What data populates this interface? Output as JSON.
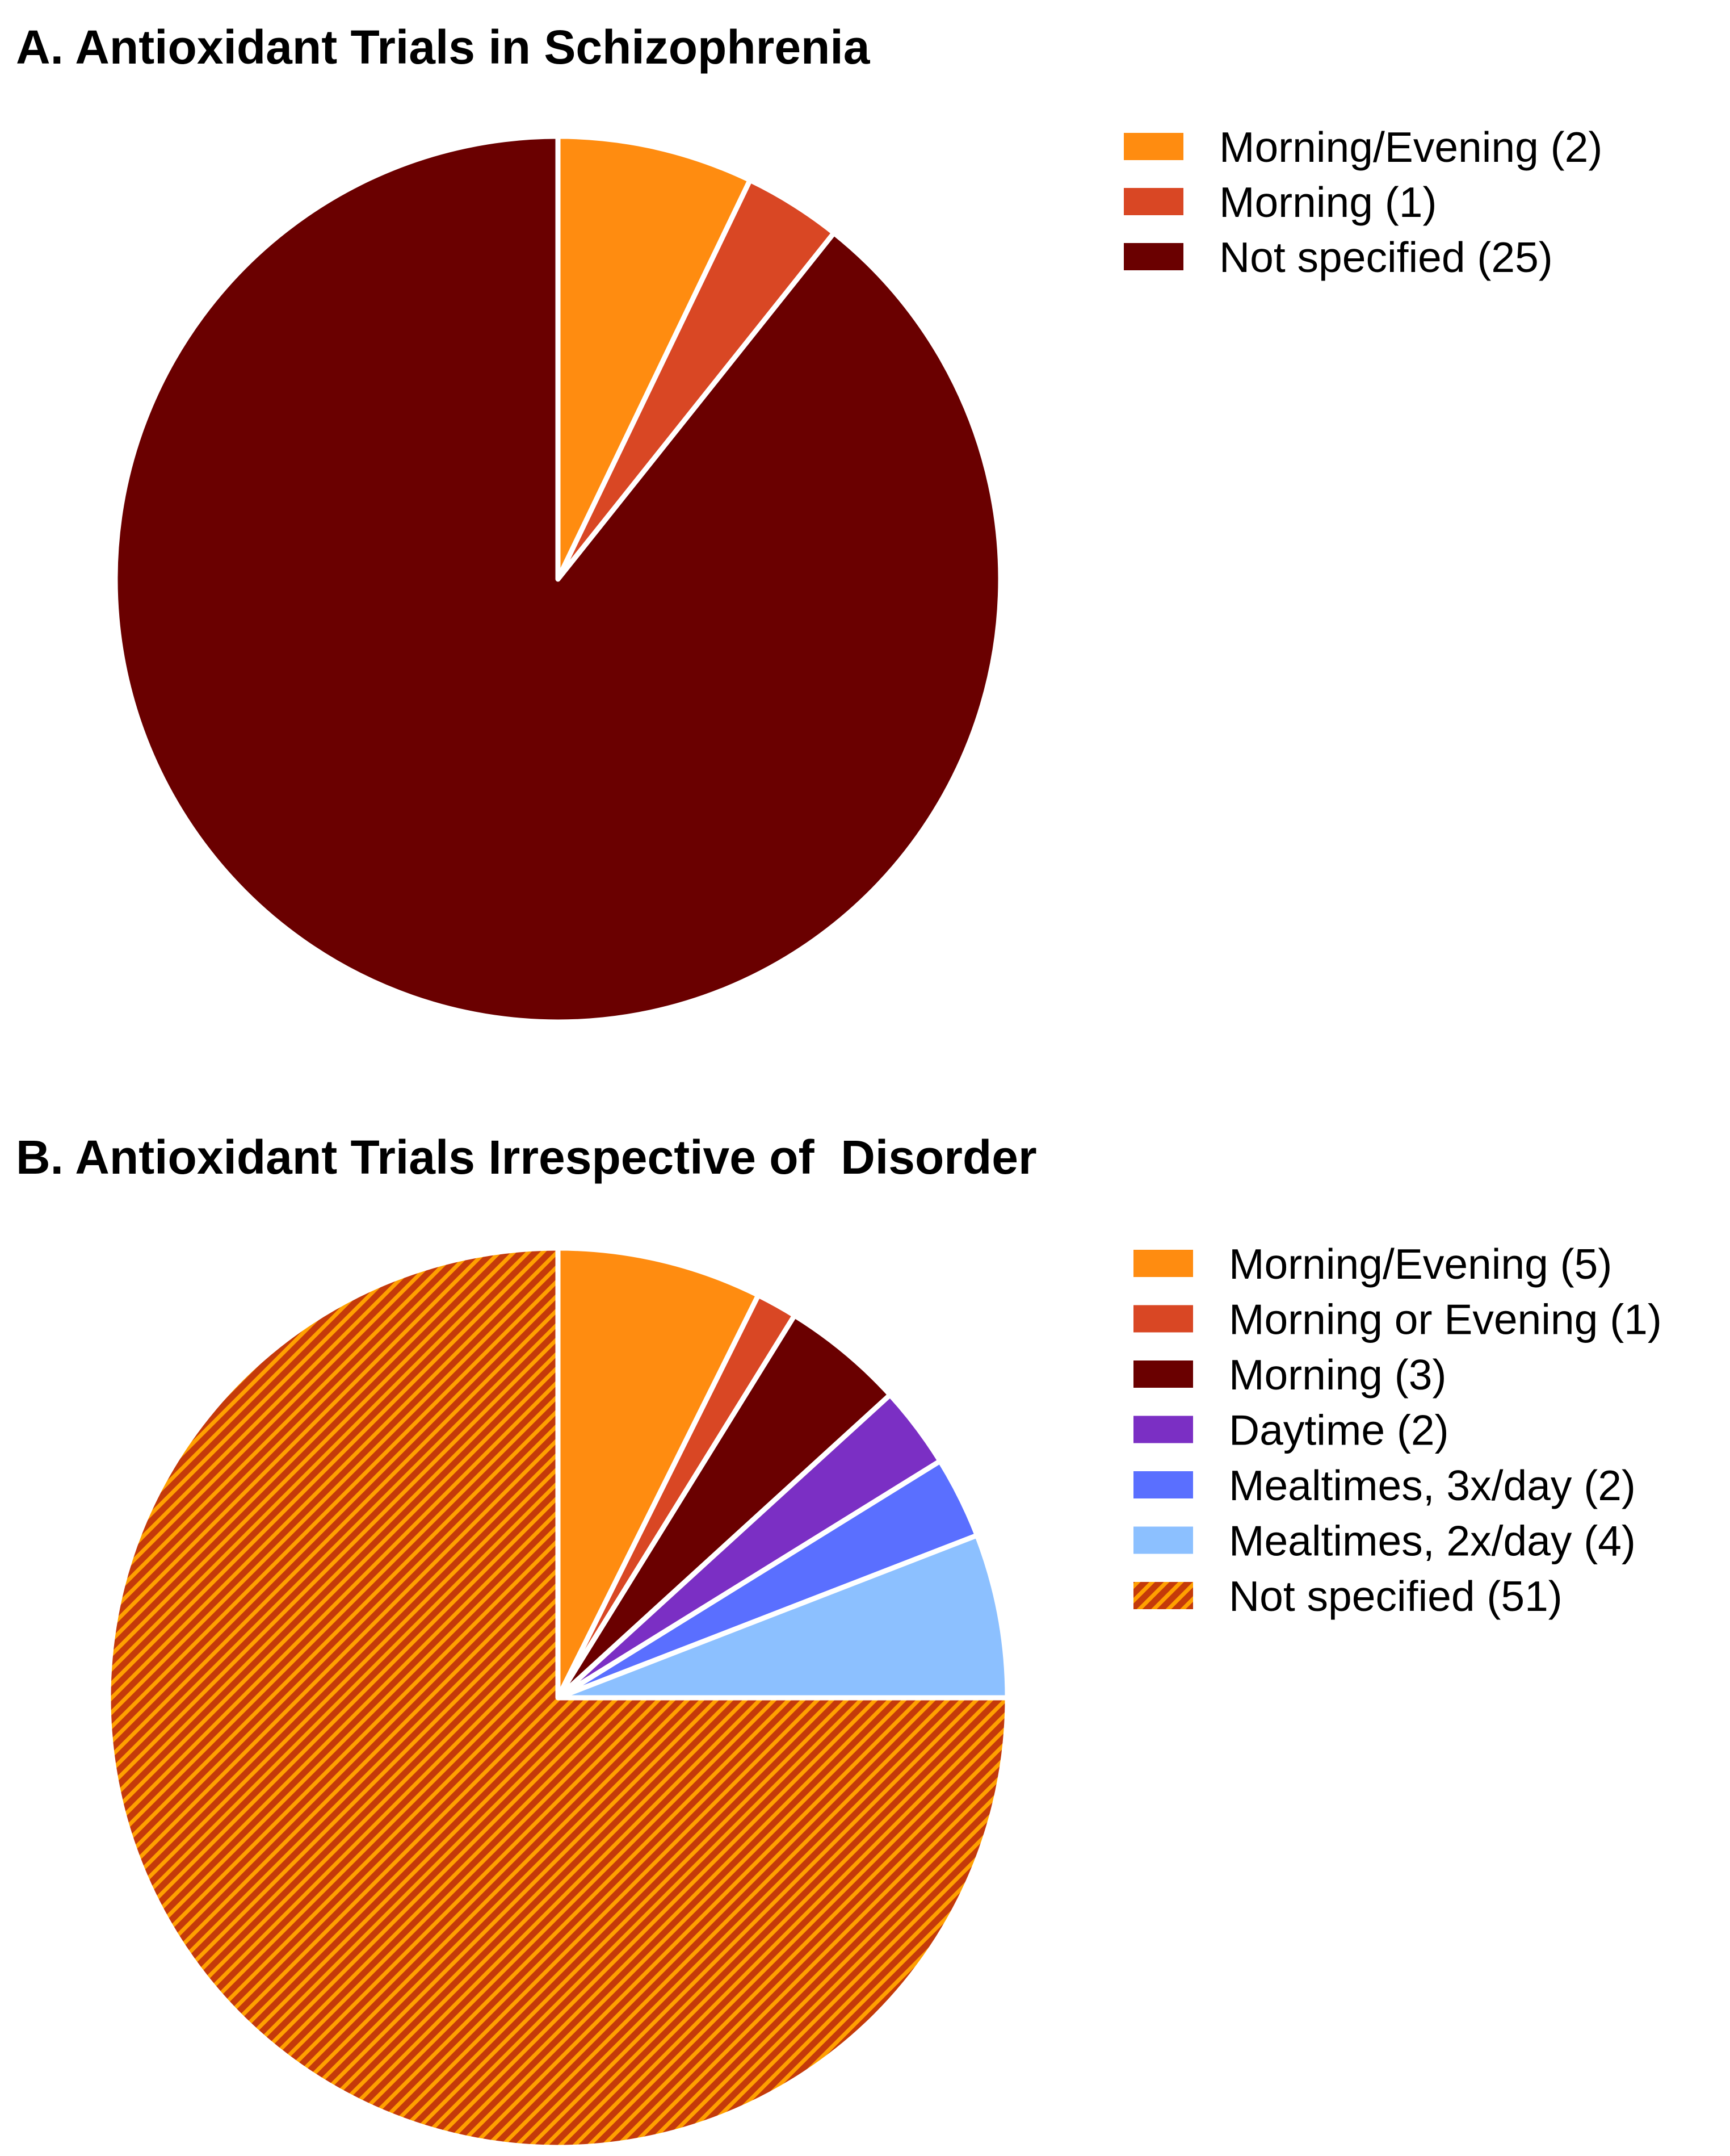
{
  "chart_data": [
    {
      "type": "pie",
      "title": "A. Antioxidant Trials in Schizophrenia",
      "start_angle": "12 o'clock",
      "direction": "clockwise",
      "slices": [
        {
          "label": "Morning/Evening (2)",
          "value": 2,
          "color": "#FF8C10",
          "pattern": "solid"
        },
        {
          "label": "Morning (1)",
          "value": 1,
          "color": "#D94724",
          "pattern": "solid"
        },
        {
          "label": "Not specified (25)",
          "value": 25,
          "color": "#6A0000",
          "pattern": "solid"
        }
      ]
    },
    {
      "type": "pie",
      "title": "B. Antioxidant Trials Irrespective of  Disorder",
      "start_angle": "12 o'clock",
      "direction": "clockwise",
      "slices": [
        {
          "label": "Morning/Evening (5)",
          "value": 5,
          "color": "#FF8C10",
          "pattern": "solid"
        },
        {
          "label": "Morning or Evening (1)",
          "value": 1,
          "color": "#D94724",
          "pattern": "solid"
        },
        {
          "label": "Morning (3)",
          "value": 3,
          "color": "#6A0000",
          "pattern": "solid"
        },
        {
          "label": "Daytime (2)",
          "value": 2,
          "color": "#7B2FC4",
          "pattern": "solid"
        },
        {
          "label": "Mealtimes, 3x/day (2)",
          "value": 2,
          "color": "#5A6FFF",
          "pattern": "solid"
        },
        {
          "label": "Mealtimes, 2x/day (4)",
          "value": 4,
          "color": "#8CC0FF",
          "pattern": "solid"
        },
        {
          "label": "Not specified (51)",
          "value": 51,
          "color": "#C43A0A",
          "pattern": "hatch",
          "hatch_color": "#FFA000"
        }
      ]
    }
  ]
}
